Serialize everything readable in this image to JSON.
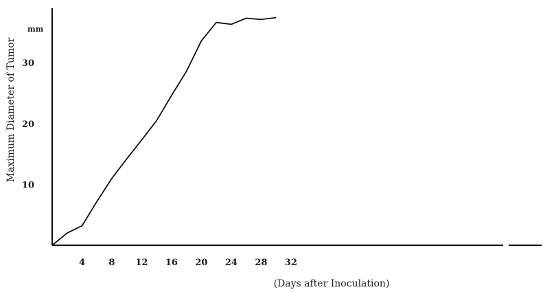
{
  "chart_data": {
    "type": "line",
    "title": "",
    "xlabel": "(Days after Inoculation)",
    "ylabel": "Maximum Diameter of Tumor",
    "y_unit": "mm",
    "xlim": [
      0,
      32
    ],
    "ylim": [
      0,
      36
    ],
    "x_ticks": [
      4,
      8,
      12,
      16,
      20,
      24,
      28,
      32
    ],
    "y_ticks": [
      10,
      20,
      30
    ],
    "grid": false,
    "series": [
      {
        "x": [
          0,
          2,
          4,
          6,
          8,
          10,
          12,
          14,
          16,
          18,
          20,
          22,
          24,
          26,
          28,
          30
        ],
        "y": [
          0,
          2.0,
          3.2,
          7.2,
          11.0,
          14.2,
          17.3,
          20.5,
          24.6,
          28.6,
          33.6,
          36.6,
          36.3,
          37.3,
          37.1,
          37.4
        ]
      }
    ]
  }
}
